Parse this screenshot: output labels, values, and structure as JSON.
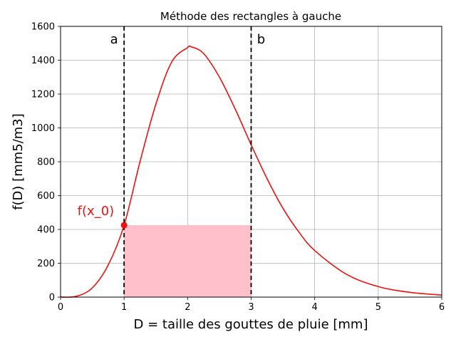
{
  "chart_data": {
    "type": "line",
    "title": "Méthode des rectangles à gauche",
    "xlabel": "D = taille des gouttes de pluie [mm]",
    "ylabel": "f(D) [mm5/m3]",
    "xlim": [
      0,
      6
    ],
    "ylim": [
      0,
      1600
    ],
    "xticks": [
      "0",
      "1",
      "2",
      "3",
      "4",
      "5",
      "6"
    ],
    "yticks": [
      "0",
      "200",
      "400",
      "600",
      "800",
      "1000",
      "1200",
      "1400",
      "1600"
    ],
    "grid": true,
    "line_color": "#ee1111",
    "rect_color": "#ffc0cb",
    "series": [
      {
        "x": [
          0,
          0.25,
          0.5,
          0.75,
          1.0,
          1.25,
          1.5,
          1.75,
          2.0,
          2.05,
          2.25,
          2.5,
          2.75,
          3.0,
          3.25,
          3.5,
          3.75,
          4.0,
          4.5,
          5.0,
          5.5,
          6.0
        ],
        "values": [
          0,
          5,
          55,
          190,
          425,
          800,
          1140,
          1390,
          1475,
          1480,
          1440,
          1300,
          1110,
          900,
          700,
          525,
          385,
          275,
          135,
          62,
          28,
          12
        ]
      }
    ],
    "rectangle": {
      "x0": 1,
      "x1": 3,
      "height": 425
    },
    "vlines": [
      {
        "x": 1,
        "label": "a"
      },
      {
        "x": 3,
        "label": "b"
      }
    ],
    "point": {
      "x": 1,
      "y": 425,
      "label": "f(x_0)"
    }
  }
}
